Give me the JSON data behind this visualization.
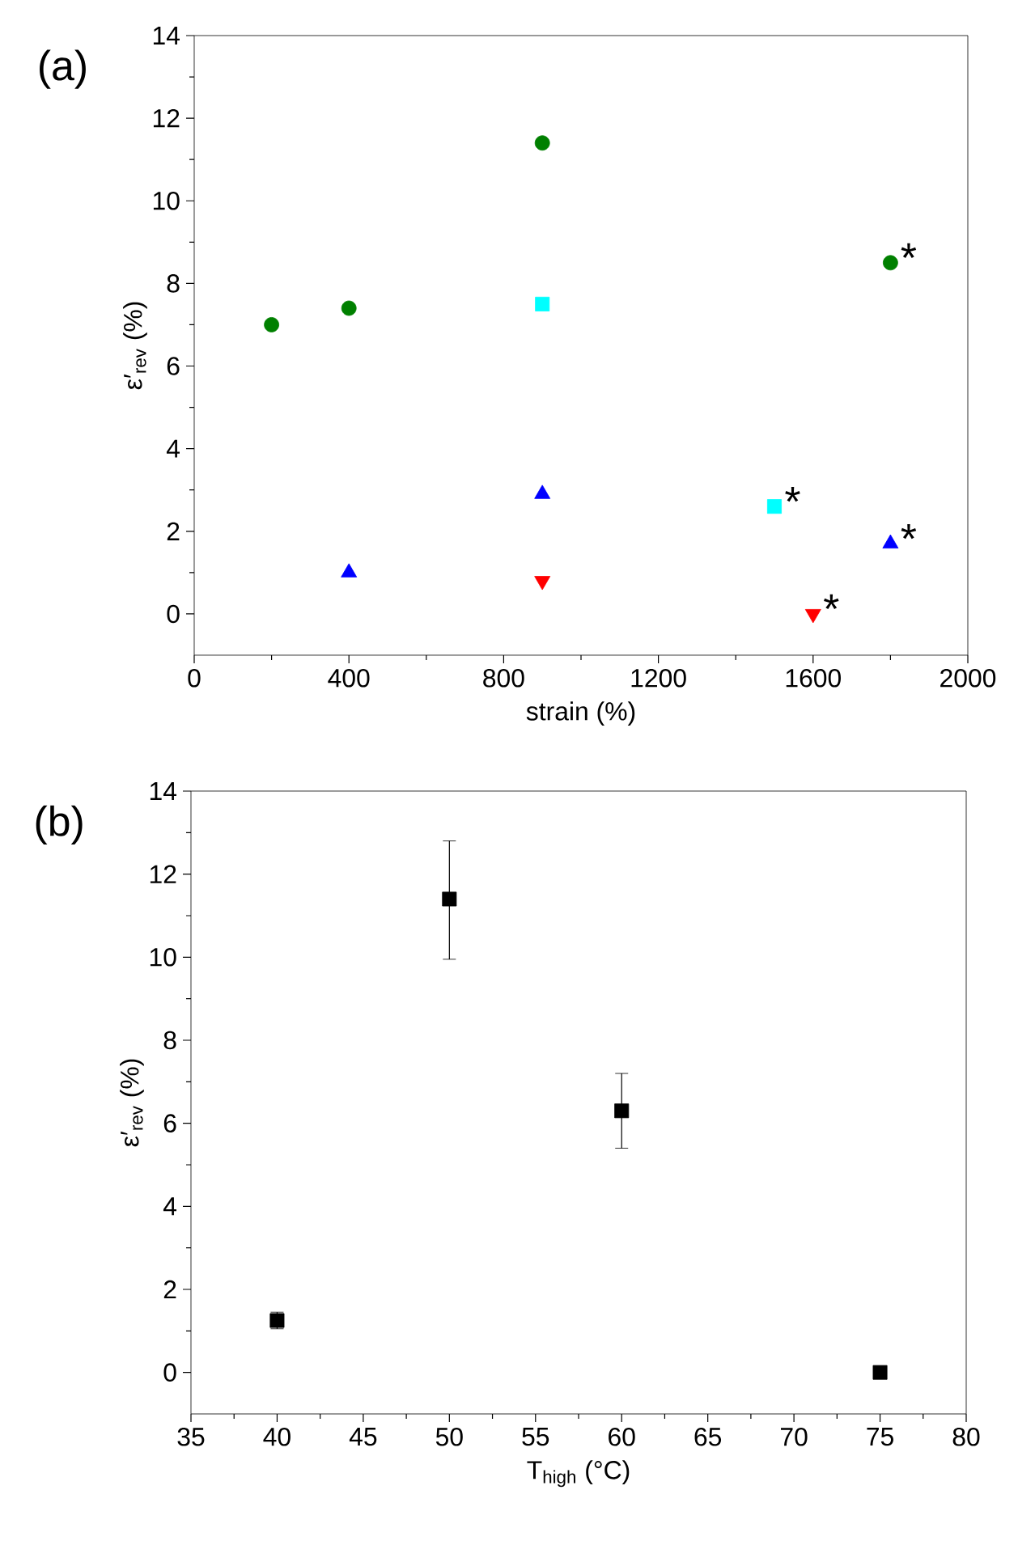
{
  "chart_data": [
    {
      "type": "scatter",
      "title": "(a)",
      "xlabel": "strain (%)",
      "ylabel": "ε′$_{rev}$ (%)",
      "xlim": [
        0,
        2000
      ],
      "xticks": [
        0,
        400,
        800,
        1200,
        1600,
        2000
      ],
      "ylim": [
        -1,
        14
      ],
      "yticks": [
        0,
        2,
        4,
        6,
        8,
        10,
        12,
        14
      ],
      "grid": false,
      "series": [
        {
          "color": "#008000",
          "marker": "circle",
          "x": [
            200,
            400,
            900,
            1800
          ],
          "values": [
            7.0,
            7.4,
            11.4,
            8.5
          ]
        },
        {
          "color": "#00ffff",
          "marker": "square",
          "x": [
            900,
            1500
          ],
          "values": [
            7.5,
            2.6
          ]
        },
        {
          "color": "#0000ff",
          "marker": "triangle",
          "x": [
            400,
            900,
            1800
          ],
          "values": [
            1.0,
            2.9,
            1.7
          ]
        },
        {
          "color": "#ff0000",
          "marker": "triangle-down",
          "x": [
            900,
            1600
          ],
          "values": [
            0.8,
            0.0
          ]
        }
      ],
      "annotations": [
        {
          "text": "*",
          "x": 1800,
          "y": 8.5
        },
        {
          "text": "*",
          "x": 1500,
          "y": 2.6
        },
        {
          "text": "*",
          "x": 1800,
          "y": 1.7
        },
        {
          "text": "*",
          "x": 1600,
          "y": 0.0
        }
      ]
    },
    {
      "type": "scatter",
      "title": "(b)",
      "xlabel": "T$_{high}$ (°C)",
      "ylabel": "ε′$_{rev}$ (%)",
      "xlim": [
        35,
        80
      ],
      "xticks": [
        35,
        40,
        45,
        50,
        55,
        60,
        65,
        70,
        75,
        80
      ],
      "ylim": [
        -1,
        14
      ],
      "yticks": [
        0,
        2,
        4,
        6,
        8,
        10,
        12,
        14
      ],
      "grid": false,
      "series": [
        {
          "color": "#000000",
          "marker": "square",
          "x": [
            40,
            50,
            60,
            75
          ],
          "values": [
            1.25,
            11.4,
            6.3,
            0.0
          ],
          "errors": [
            [
              1.05,
              1.45
            ],
            [
              9.95,
              12.8
            ],
            [
              5.4,
              7.2
            ],
            null
          ]
        }
      ]
    }
  ]
}
